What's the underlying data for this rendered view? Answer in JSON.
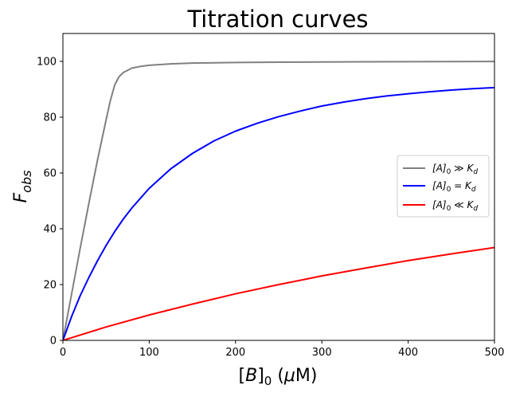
{
  "chart_data": {
    "type": "line",
    "title": "Titration curves",
    "xlabel": "[B]₀ (μM)",
    "ylabel": "F_obs",
    "xlim": [
      0,
      500
    ],
    "ylim": [
      0,
      110
    ],
    "xticks": [
      0,
      100,
      200,
      300,
      400,
      500
    ],
    "yticks": [
      0,
      20,
      40,
      60,
      80,
      100
    ],
    "grid": false,
    "legend_position": "center-right",
    "series": [
      {
        "name": "[A]₀ ≫ K_d",
        "color": "#808080",
        "x": [
          0,
          10,
          20,
          30,
          40,
          50,
          55,
          60,
          65,
          70,
          80,
          90,
          100,
          125,
          150,
          200,
          250,
          300,
          350,
          400,
          450,
          500
        ],
        "y": [
          0,
          16.5,
          33,
          49,
          64.5,
          79,
          86,
          91.5,
          94.5,
          96,
          97.6,
          98.2,
          98.6,
          99.1,
          99.4,
          99.6,
          99.7,
          99.8,
          99.85,
          99.9,
          99.92,
          99.95
        ]
      },
      {
        "name": "[A]₀ = K_d",
        "color": "#0000ff",
        "x": [
          0,
          10,
          20,
          30,
          40,
          50,
          60,
          70,
          80,
          90,
          100,
          125,
          150,
          175,
          200,
          225,
          250,
          275,
          300,
          325,
          350,
          375,
          400,
          425,
          450,
          475,
          500
        ],
        "y": [
          0,
          8.5,
          16,
          22.5,
          28.5,
          34,
          39,
          43.5,
          47.5,
          51,
          54.5,
          61.5,
          67,
          71.5,
          75,
          77.8,
          80.2,
          82.2,
          84,
          85.4,
          86.6,
          87.6,
          88.4,
          89.1,
          89.7,
          90.2,
          90.6
        ]
      },
      {
        "name": "[A]₀ ≪ K_d",
        "color": "#ff0000",
        "x": [
          0,
          50,
          100,
          150,
          200,
          250,
          300,
          350,
          400,
          450,
          500
        ],
        "y": [
          0,
          4.8,
          9.1,
          13.0,
          16.7,
          20.0,
          23.1,
          25.9,
          28.6,
          31.0,
          33.3
        ]
      }
    ]
  }
}
